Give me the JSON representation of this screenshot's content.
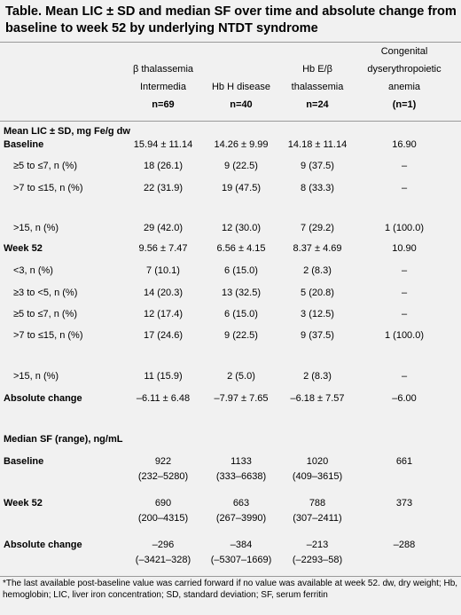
{
  "title": "Table. Mean LIC ± SD and median SF over time and absolute change from baseline to week 52 by underlying NTDT syndrome",
  "columns": [
    [
      "β thalassemia",
      "Intermedia",
      "n=69"
    ],
    [
      "Hb H disease",
      "n=40"
    ],
    [
      "Hb E/β",
      "thalassemia",
      "n=24"
    ],
    [
      "Congenital",
      "dyserythropoietic",
      "anemia",
      "(n=1)"
    ]
  ],
  "sections": {
    "lic": "Mean LIC ± SD, mg Fe/g dw",
    "sf": "Median SF (range), ng/mL"
  },
  "lic_rows": [
    {
      "label": "Baseline",
      "values": [
        "15.94 ± 11.14",
        "14.26 ± 9.99",
        "14.18 ± 11.14",
        "16.90"
      ]
    },
    {
      "label": "≥5 to ≤7, n (%)",
      "values": [
        "18 (26.1)",
        "9 (22.5)",
        "9 (37.5)",
        "–"
      ]
    },
    {
      "label": ">7 to ≤15, n (%)",
      "values": [
        "22 (31.9)",
        "19 (47.5)",
        "8 (33.3)",
        "–"
      ]
    },
    {
      "label": ">15, n (%)",
      "values": [
        "29 (42.0)",
        "12 (30.0)",
        "7 (29.2)",
        "1 (100.0)"
      ]
    },
    {
      "label": "Week 52",
      "values": [
        "9.56 ± 7.47",
        "6.56 ± 4.15",
        "8.37 ± 4.69",
        "10.90"
      ]
    },
    {
      "label": "<3, n (%)",
      "values": [
        "7 (10.1)",
        "6 (15.0)",
        "2 (8.3)",
        "–"
      ]
    },
    {
      "label": "≥3 to <5, n (%)",
      "values": [
        "14 (20.3)",
        "13 (32.5)",
        "5 (20.8)",
        "–"
      ]
    },
    {
      "label": "≥5 to ≤7, n (%)",
      "values": [
        "12 (17.4)",
        "6 (15.0)",
        "3 (12.5)",
        "–"
      ]
    },
    {
      "label": ">7 to ≤15, n (%)",
      "values": [
        "17 (24.6)",
        "9 (22.5)",
        "9 (37.5)",
        "1 (100.0)"
      ]
    },
    {
      "label": ">15, n (%)",
      "values": [
        "11 (15.9)",
        "2 (5.0)",
        "2 (8.3)",
        "–"
      ]
    },
    {
      "label": "Absolute change",
      "values": [
        "–6.11 ± 6.48",
        "–7.97 ± 7.65",
        "–6.18 ± 7.57",
        "–6.00"
      ]
    }
  ],
  "sf_rows": [
    {
      "label": "Baseline",
      "values": [
        "922",
        "1133",
        "1020",
        "661"
      ],
      "ranges": [
        "(232–5280)",
        "(333–6638)",
        "(409–3615)",
        ""
      ]
    },
    {
      "label": "Week 52",
      "values": [
        "690",
        "663",
        "788",
        "373"
      ],
      "ranges": [
        "(200–4315)",
        "(267–3990)",
        "(307–2411)",
        ""
      ]
    },
    {
      "label": "Absolute change",
      "values": [
        "–296",
        "–384",
        "–213",
        "–288"
      ],
      "ranges": [
        "(–3421–328)",
        "(–5307–1669)",
        "(–2293–58)",
        ""
      ]
    }
  ],
  "footnote": "*The last available post-baseline value was carried forward if no value was available at week 52. dw, dry weight; Hb, hemoglobin; LIC, liver iron concentration; SD, standard deviation; SF, serum ferritin"
}
